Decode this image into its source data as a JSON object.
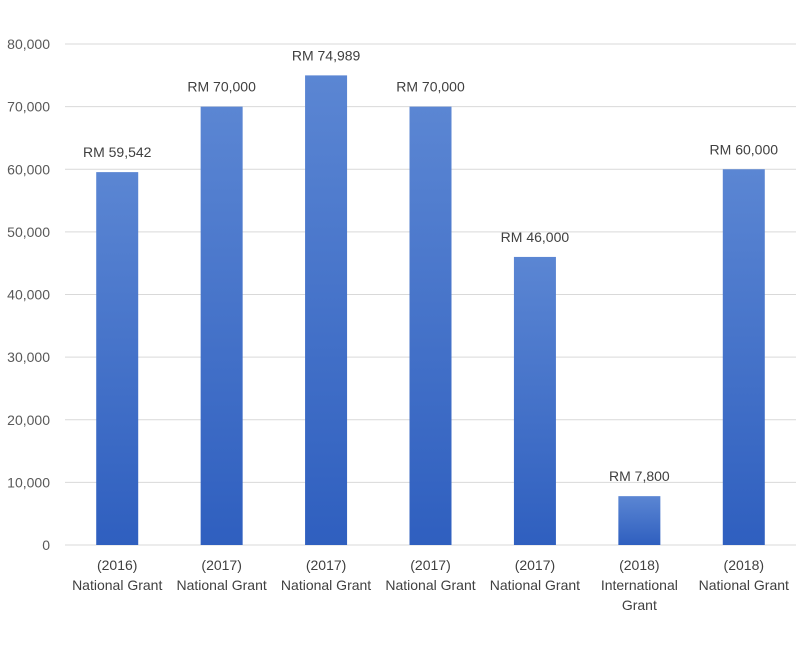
{
  "chart_data": {
    "type": "bar",
    "categories": [
      [
        "(2016)",
        "National Grant"
      ],
      [
        "(2017)",
        "National Grant"
      ],
      [
        "(2017)",
        "National Grant"
      ],
      [
        "(2017)",
        "National Grant"
      ],
      [
        "(2017)",
        "National Grant"
      ],
      [
        "(2018)",
        "International",
        "Grant"
      ],
      [
        "(2018)",
        "National Grant"
      ]
    ],
    "values": [
      59542,
      70000,
      74989,
      70000,
      46000,
      7800,
      60000
    ],
    "data_labels": [
      "RM 59,542",
      "RM 70,000",
      "RM 74,989",
      "RM 70,000",
      "RM 46,000",
      "RM 7,800",
      "RM 60,000"
    ],
    "y_ticks": [
      "0",
      "10,000",
      "20,000",
      "30,000",
      "40,000",
      "50,000",
      "60,000",
      "70,000",
      "80,000"
    ],
    "ylim": [
      0,
      80000
    ],
    "grid": true,
    "legend": "none",
    "colors": {
      "bar_top": "#5b86d3",
      "bar_bottom": "#2f5fbf",
      "grid": "#d9d9d9",
      "text": "#404040"
    }
  }
}
